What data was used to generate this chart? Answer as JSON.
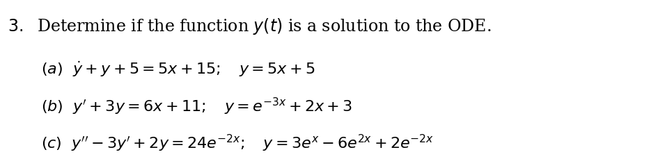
{
  "background_color": "#ffffff",
  "title_text": "3.\\;\\text{Determine if the function }y(t)\\text{ is a solution to the ODE.}",
  "line_a": "(\\text{a})\\;\\dot{y}+y+5=5x+15;\\quad y=5x+5",
  "line_b": "(\\text{b})\\;y^{\\prime}+3y=6x+11;\\quad y=e^{-3x}+2x+3",
  "line_c": "(\\text{c})\\;y^{\\prime\\prime}-3y^{\\prime}+2y=24e^{-2x};\\quad y=3e^{x}-6e^{2x}+2e^{-2x}",
  "figsize": [
    9.55,
    2.29
  ],
  "dpi": 100,
  "text_color": "#000000",
  "fontsize_title": 17,
  "fontsize_body": 16
}
